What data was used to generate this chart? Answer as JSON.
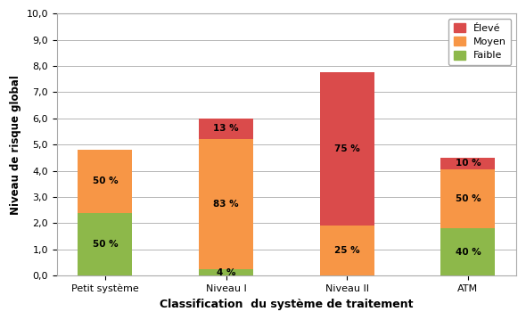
{
  "categories": [
    "Petit système",
    "Niveau I",
    "Niveau II",
    "ATM"
  ],
  "faible": [
    2.4,
    0.24,
    0.0,
    1.8
  ],
  "moyen": [
    2.4,
    4.98,
    1.9,
    2.25
  ],
  "eleve": [
    0.0,
    0.78,
    5.85,
    0.45
  ],
  "faible_pct": [
    "50 %",
    "4 %",
    "",
    "40 %"
  ],
  "moyen_pct": [
    "50 %",
    "83 %",
    "25 %",
    "50 %"
  ],
  "eleve_pct": [
    "",
    "13 %",
    "75 %",
    "10 %"
  ],
  "color_faible": "#8DB84A",
  "color_moyen": "#F79646",
  "color_eleve": "#DA4B4B",
  "xlabel": "Classification  du système de traitement",
  "ylabel": "Niveau de risque global",
  "ylim": [
    0,
    10
  ],
  "yticks": [
    0.0,
    1.0,
    2.0,
    3.0,
    4.0,
    5.0,
    6.0,
    7.0,
    8.0,
    9.0,
    10.0
  ],
  "ytick_labels": [
    "0,0",
    "1,0",
    "2,0",
    "3,0",
    "4,0",
    "5,0",
    "6,0",
    "7,0",
    "8,0",
    "9,0",
    "10,0"
  ],
  "bar_width": 0.45,
  "fig_width": 5.9,
  "fig_height": 3.59,
  "dpi": 100
}
